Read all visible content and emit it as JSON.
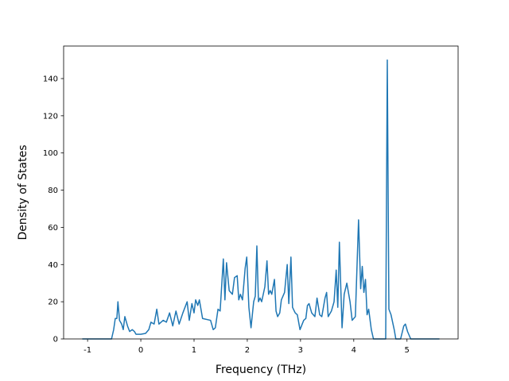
{
  "chart_data": {
    "type": "line",
    "xlabel": "Frequency (THz)",
    "ylabel": "Density of States",
    "color": "#1f77b4",
    "xlim": [
      -1.45,
      5.96
    ],
    "ylim": [
      0,
      157.5
    ],
    "xticks": [
      -1,
      0,
      1,
      2,
      3,
      4,
      5
    ],
    "yticks": [
      0,
      20,
      40,
      60,
      80,
      100,
      120,
      140
    ],
    "x": [
      -1.1,
      -0.55,
      -0.51,
      -0.48,
      -0.45,
      -0.43,
      -0.4,
      -0.36,
      -0.33,
      -0.3,
      -0.25,
      -0.21,
      -0.16,
      -0.12,
      -0.09,
      0,
      0.09,
      0.15,
      0.19,
      0.25,
      0.3,
      0.34,
      0.42,
      0.48,
      0.54,
      0.6,
      0.66,
      0.72,
      0.79,
      0.87,
      0.91,
      0.96,
      1.0,
      1.03,
      1.07,
      1.1,
      1.16,
      1.31,
      1.36,
      1.4,
      1.45,
      1.49,
      1.55,
      1.58,
      1.61,
      1.66,
      1.72,
      1.76,
      1.81,
      1.84,
      1.87,
      1.91,
      1.96,
      1.99,
      2.03,
      2.07,
      2.12,
      2.15,
      2.18,
      2.21,
      2.24,
      2.27,
      2.33,
      2.37,
      2.4,
      2.43,
      2.46,
      2.51,
      2.54,
      2.57,
      2.61,
      2.64,
      2.7,
      2.75,
      2.78,
      2.82,
      2.85,
      2.9,
      2.94,
      2.99,
      3.06,
      3.1,
      3.13,
      3.16,
      3.21,
      3.27,
      3.31,
      3.36,
      3.4,
      3.46,
      3.49,
      3.52,
      3.58,
      3.63,
      3.67,
      3.7,
      3.73,
      3.78,
      3.82,
      3.87,
      3.93,
      3.97,
      4.03,
      4.09,
      4.13,
      4.16,
      4.19,
      4.22,
      4.25,
      4.28,
      4.33,
      4.37,
      4.6,
      4.63,
      4.66,
      4.7,
      4.76,
      4.79,
      4.88,
      4.94,
      4.97,
      5.01,
      5.07,
      5.61
    ],
    "values": [
      0,
      0,
      5,
      11,
      11,
      20,
      10,
      8,
      5,
      12,
      7,
      4,
      5,
      4,
      2.5,
      2.5,
      3,
      5,
      9,
      8,
      16,
      8,
      10,
      9,
      14,
      7,
      15,
      8,
      14,
      20,
      10,
      19,
      14,
      21,
      18,
      21,
      11,
      10,
      5,
      6,
      16,
      15,
      43,
      21,
      41,
      26,
      24,
      33,
      34,
      21,
      24,
      21,
      38,
      44,
      17,
      6,
      20,
      23,
      50,
      20,
      22,
      20,
      28,
      42,
      24,
      26,
      24,
      32,
      15,
      12,
      14,
      21,
      25,
      40,
      19,
      44,
      17,
      14,
      13,
      5,
      10,
      11,
      18,
      19,
      14,
      12,
      22,
      13,
      12,
      22,
      25,
      12,
      15,
      20,
      37,
      17,
      52,
      6,
      24,
      30,
      20,
      10,
      12,
      64,
      27,
      39,
      25,
      32,
      13,
      16,
      5,
      0,
      0,
      150,
      16,
      13,
      5,
      0,
      0,
      7,
      8,
      4,
      0,
      0
    ]
  }
}
